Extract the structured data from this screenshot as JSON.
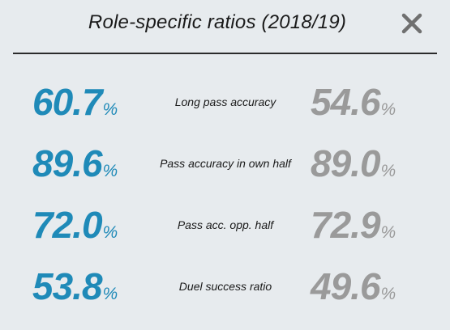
{
  "header": {
    "title": "Role-specific ratios (2018/19)",
    "close_icon": "close-icon"
  },
  "colors": {
    "left_value": "#1f8ab8",
    "right_value": "#9a9a9a",
    "background": "#e7ebee"
  },
  "stats": [
    {
      "label": "Long pass accuracy",
      "left": "60.7",
      "right": "54.6",
      "unit": "%"
    },
    {
      "label": "Pass accuracy in own half",
      "left": "89.6",
      "right": "89.0",
      "unit": "%"
    },
    {
      "label": "Pass acc. opp. half",
      "left": "72.0",
      "right": "72.9",
      "unit": "%"
    },
    {
      "label": "Duel success ratio",
      "left": "53.8",
      "right": "49.6",
      "unit": "%"
    }
  ]
}
